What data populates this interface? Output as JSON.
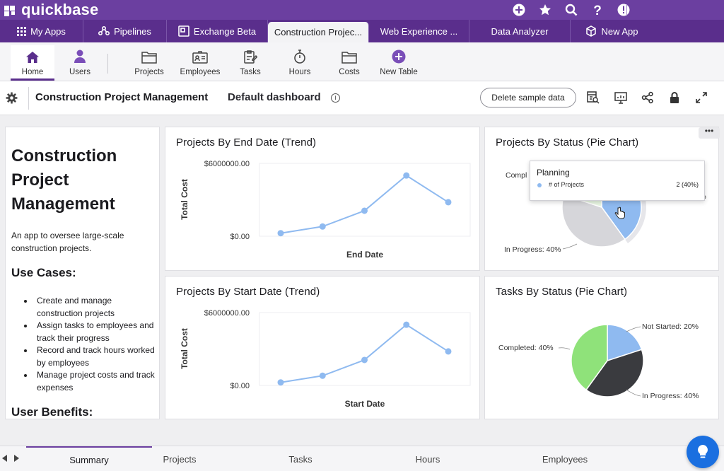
{
  "brand": {
    "name": "quickbase"
  },
  "top_icons": [
    "add-circle-icon",
    "star-icon",
    "search-icon",
    "help-icon",
    "alert-icon"
  ],
  "app_tabs": [
    {
      "label": "My Apps",
      "icon": "grid-icon"
    },
    {
      "label": "Pipelines",
      "icon": "pipelines-icon"
    },
    {
      "label": "Exchange Beta",
      "icon": "exchange-icon"
    },
    {
      "label": "Construction Projec...",
      "icon": "",
      "active": true
    },
    {
      "label": "Web Experience ...",
      "icon": ""
    },
    {
      "label": "Data Analyzer",
      "icon": ""
    },
    {
      "label": "New App",
      "icon": "cube-icon"
    }
  ],
  "ribbon": [
    {
      "label": "Home",
      "icon": "home-icon",
      "active": true
    },
    {
      "label": "Users",
      "icon": "user-icon"
    },
    {
      "label": "Projects",
      "icon": "folder-icon"
    },
    {
      "label": "Employees",
      "icon": "id-card-icon"
    },
    {
      "label": "Tasks",
      "icon": "clipboard-icon"
    },
    {
      "label": "Hours",
      "icon": "stopwatch-icon"
    },
    {
      "label": "Costs",
      "icon": "folder-icon"
    },
    {
      "label": "New Table",
      "icon": "add-circle-icon"
    }
  ],
  "titlebar": {
    "app_name": "Construction Project Management",
    "dashboard_name": "Default dashboard",
    "info": "i",
    "delete_label": "Delete sample data"
  },
  "description": {
    "title": "Construction Project Management",
    "intro": "An app to oversee large-scale construction projects.",
    "use_cases_heading": "Use Cases:",
    "use_cases": [
      "Create and manage construction projects",
      "Assign tasks to employees and track their progress",
      "Record and track hours worked by employees",
      "Manage project costs and track expenses"
    ],
    "benefits_heading": "User Benefits:"
  },
  "widgets": {
    "end_date": {
      "title": "Projects By End Date (Trend)"
    },
    "start_date": {
      "title": "Projects By Start Date (Trend)"
    },
    "project_status": {
      "title": "Projects By Status (Pie Chart)",
      "more": "•••"
    },
    "task_status": {
      "title": "Tasks By Status (Pie Chart)"
    }
  },
  "tooltip": {
    "title": "Planning",
    "label": "# of Projects",
    "value": "2 (40%)"
  },
  "chart_data": [
    {
      "type": "line",
      "title": "Projects By End Date (Trend)",
      "xlabel": "End Date",
      "ylabel": "Total Cost",
      "y_ticks": [
        "$6000000.00",
        "$0.00"
      ],
      "ylim": [
        0,
        6000000
      ],
      "series": [
        {
          "values": [
            250000,
            800000,
            2100000,
            5000000,
            2800000
          ]
        }
      ],
      "color": "#8fbaf0",
      "grid": false
    },
    {
      "type": "line",
      "title": "Projects By Start Date (Trend)",
      "xlabel": "Start Date",
      "ylabel": "Total Cost",
      "y_ticks": [
        "$6000000.00",
        "$0.00"
      ],
      "ylim": [
        0,
        6000000
      ],
      "series": [
        {
          "values": [
            250000,
            800000,
            2100000,
            5000000,
            2800000
          ]
        }
      ],
      "color": "#8fbaf0",
      "grid": false
    },
    {
      "type": "pie",
      "title": "Projects By Status (Pie Chart)",
      "slices": [
        {
          "label": "Planning",
          "value": 40,
          "color": "#8fbaf0"
        },
        {
          "label": "In Progress",
          "value": 40,
          "color": "#d6d6da"
        },
        {
          "label": "Completed",
          "value": 20,
          "color": "#e9f7e4"
        }
      ],
      "visible_labels": {
        "completed": "Compl",
        "planning": "Planning: 40%",
        "in_progress": "In Progress: 40%"
      }
    },
    {
      "type": "pie",
      "title": "Tasks By Status (Pie Chart)",
      "slices": [
        {
          "label": "Not Started",
          "value": 20,
          "color": "#8fbaf0"
        },
        {
          "label": "In Progress",
          "value": 40,
          "color": "#3a3b3f"
        },
        {
          "label": "Completed",
          "value": 40,
          "color": "#8fe27a"
        }
      ],
      "visible_labels": {
        "not_started": "Not Started: 20%",
        "in_progress": "In Progress: 40%",
        "completed": "Completed: 40%"
      }
    }
  ],
  "bottom_tabs": [
    {
      "label": "Summary",
      "active": true
    },
    {
      "label": "Projects"
    },
    {
      "label": "Tasks"
    },
    {
      "label": "Hours"
    },
    {
      "label": "Employees"
    }
  ],
  "colors": {
    "brand": "#6b3fa0",
    "tab_bar": "#5a2e8c",
    "help": "#1a6fe0"
  }
}
